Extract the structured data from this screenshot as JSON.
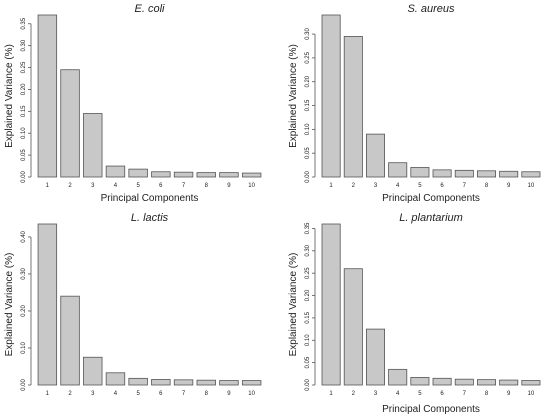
{
  "chart_data": [
    {
      "type": "bar",
      "title": "E. coli",
      "xlabel": "Principal Components",
      "ylabel": "Explained Variance (%)",
      "categories": [
        "1",
        "2",
        "3",
        "4",
        "5",
        "6",
        "7",
        "8",
        "9",
        "10"
      ],
      "values": [
        0.37,
        0.245,
        0.145,
        0.025,
        0.018,
        0.012,
        0.011,
        0.01,
        0.01,
        0.009
      ],
      "ylim": [
        0,
        0.37
      ],
      "yticks": [
        "0.00",
        "0.05",
        "0.10",
        "0.15",
        "0.20",
        "0.25",
        "0.30",
        "0.35"
      ],
      "ytick_values": [
        0,
        0.05,
        0.1,
        0.15,
        0.2,
        0.25,
        0.3,
        0.35
      ],
      "grid": false,
      "colors": {
        "bar": "#c8c8c8",
        "edge": "#555555"
      }
    },
    {
      "type": "bar",
      "title": "S. aureus",
      "xlabel": "Principal Components",
      "ylabel": "Explained Variance (%)",
      "categories": [
        "1",
        "2",
        "3",
        "4",
        "5",
        "6",
        "7",
        "8",
        "9",
        "10"
      ],
      "values": [
        0.34,
        0.295,
        0.09,
        0.03,
        0.02,
        0.015,
        0.014,
        0.013,
        0.012,
        0.011
      ],
      "ylim": [
        0,
        0.34
      ],
      "yticks": [
        "0.00",
        "0.05",
        "0.10",
        "0.15",
        "0.20",
        "0.25",
        "0.30"
      ],
      "ytick_values": [
        0,
        0.05,
        0.1,
        0.15,
        0.2,
        0.25,
        0.3
      ],
      "grid": false,
      "colors": {
        "bar": "#c8c8c8",
        "edge": "#555555"
      }
    },
    {
      "type": "bar",
      "title": "L. lactis",
      "xlabel": "",
      "ylabel": "Explained Variance (%)",
      "categories": [
        "1",
        "2",
        "3",
        "4",
        "5",
        "6",
        "7",
        "8",
        "9",
        "10"
      ],
      "values": [
        0.435,
        0.24,
        0.075,
        0.033,
        0.018,
        0.015,
        0.014,
        0.013,
        0.012,
        0.012
      ],
      "ylim": [
        0,
        0.435
      ],
      "yticks": [
        "0.00",
        "0.10",
        "0.20",
        "0.30",
        "0.40"
      ],
      "ytick_values": [
        0,
        0.1,
        0.2,
        0.3,
        0.4
      ],
      "grid": false,
      "colors": {
        "bar": "#c8c8c8",
        "edge": "#555555"
      }
    },
    {
      "type": "bar",
      "title": "L. plantarium",
      "xlabel": "Principal Components",
      "ylabel": "Explained Variance (%)",
      "categories": [
        "1",
        "2",
        "3",
        "4",
        "5",
        "6",
        "7",
        "8",
        "9",
        "10"
      ],
      "values": [
        0.36,
        0.26,
        0.125,
        0.035,
        0.017,
        0.015,
        0.013,
        0.012,
        0.011,
        0.01
      ],
      "ylim": [
        0,
        0.36
      ],
      "yticks": [
        "0.00",
        "0.05",
        "0.10",
        "0.15",
        "0.20",
        "0.25",
        "0.30",
        "0.35"
      ],
      "ytick_values": [
        0,
        0.05,
        0.1,
        0.15,
        0.2,
        0.25,
        0.3,
        0.35
      ],
      "grid": false,
      "colors": {
        "bar": "#c8c8c8",
        "edge": "#555555"
      }
    }
  ]
}
